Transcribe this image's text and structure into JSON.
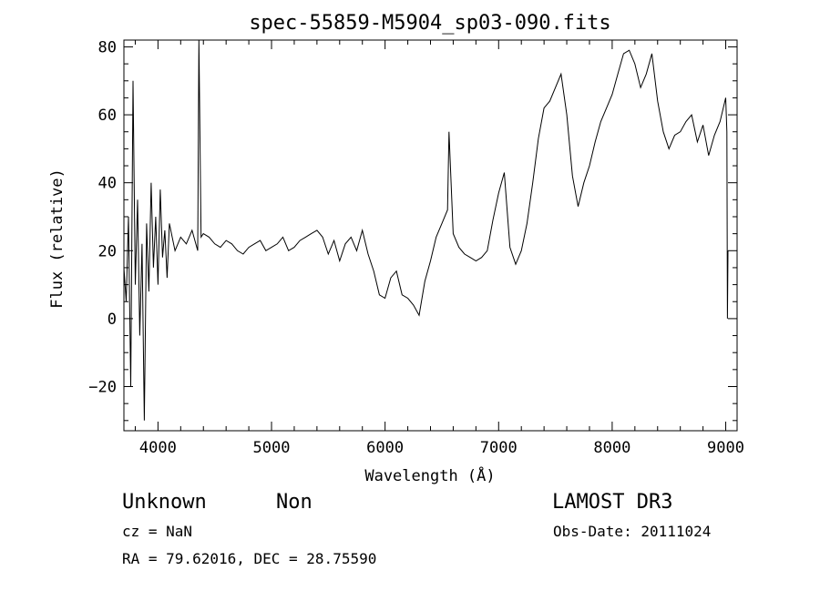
{
  "chart_data": {
    "type": "line",
    "title": "spec-55859-M5904_sp03-090.fits",
    "xlabel": "Wavelength (Å)",
    "ylabel": "Flux (relative)",
    "xlim": [
      3700,
      9100
    ],
    "ylim": [
      -33,
      82
    ],
    "x_ticks": [
      4000,
      5000,
      6000,
      7000,
      8000,
      9000
    ],
    "x_tick_labels": [
      "4000",
      "5000",
      "6000",
      "7000",
      "8000",
      "9000"
    ],
    "y_ticks": [
      -20,
      0,
      20,
      40,
      60,
      80
    ],
    "y_tick_labels": [
      "−20",
      "0",
      "20",
      "40",
      "60",
      "80"
    ],
    "grid": false,
    "line_color": "#000000",
    "series": [
      {
        "x": [
          3700,
          3720,
          3740,
          3760,
          3780,
          3800,
          3820,
          3840,
          3860,
          3880,
          3900,
          3920,
          3940,
          3960,
          3980,
          4000,
          4020,
          4040,
          4060,
          4080,
          4100,
          4150,
          4200,
          4250,
          4300,
          4350,
          4360,
          4380,
          4400,
          4450,
          4500,
          4550,
          4600,
          4650,
          4700,
          4750,
          4800,
          4850,
          4900,
          4950,
          5000,
          5050,
          5100,
          5150,
          5200,
          5250,
          5300,
          5350,
          5400,
          5450,
          5500,
          5550,
          5600,
          5650,
          5700,
          5750,
          5800,
          5850,
          5900,
          5950,
          6000,
          6050,
          6100,
          6150,
          6200,
          6250,
          6300,
          6350,
          6400,
          6450,
          6500,
          6550,
          6563,
          6600,
          6650,
          6700,
          6750,
          6800,
          6850,
          6900,
          6950,
          7000,
          7050,
          7100,
          7150,
          7200,
          7250,
          7300,
          7350,
          7400,
          7450,
          7500,
          7550,
          7600,
          7650,
          7700,
          7750,
          7800,
          7850,
          7900,
          7950,
          8000,
          8050,
          8100,
          8150,
          8200,
          8250,
          8300,
          8350,
          8400,
          8450,
          8500,
          8550,
          8600,
          8650,
          8700,
          8750,
          8800,
          8850,
          8900,
          8950,
          9000,
          9010,
          9015,
          9020
        ],
        "y": [
          15,
          5,
          30,
          -20,
          70,
          10,
          35,
          -5,
          22,
          -30,
          28,
          8,
          40,
          15,
          30,
          10,
          38,
          18,
          26,
          12,
          28,
          20,
          24,
          22,
          26,
          20,
          82,
          24,
          25,
          24,
          22,
          21,
          23,
          22,
          20,
          19,
          21,
          22,
          23,
          20,
          21,
          22,
          24,
          20,
          21,
          23,
          24,
          25,
          26,
          24,
          19,
          23,
          17,
          22,
          24,
          20,
          26,
          19,
          14,
          7,
          6,
          12,
          14,
          7,
          6,
          4,
          1,
          11,
          17,
          24,
          28,
          32,
          55,
          25,
          21,
          19,
          18,
          17,
          18,
          20,
          29,
          37,
          43,
          21,
          16,
          20,
          28,
          40,
          53,
          62,
          64,
          68,
          72,
          60,
          42,
          33,
          40,
          45,
          52,
          58,
          62,
          66,
          72,
          78,
          79,
          75,
          68,
          72,
          78,
          64,
          55,
          50,
          54,
          55,
          58,
          60,
          52,
          57,
          48,
          54,
          58,
          65,
          55,
          0,
          20
        ]
      }
    ]
  },
  "info": {
    "class_label": "Unknown",
    "subclass_label": "Non",
    "survey": "LAMOST DR3",
    "cz": "cz = NaN",
    "obs_date": "Obs-Date: 20111024",
    "radec": "RA =  79.62016, DEC =  28.75590"
  }
}
